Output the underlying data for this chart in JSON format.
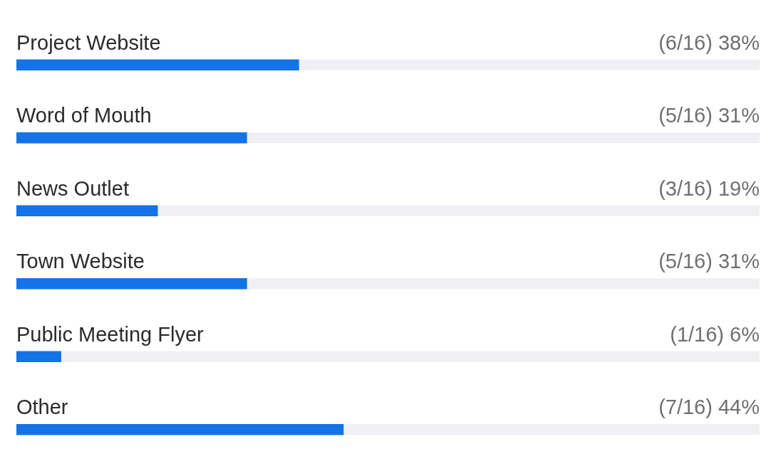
{
  "chart_data": {
    "type": "bar",
    "orientation": "horizontal",
    "categories": [
      "Project Website",
      "Word of Mouth",
      "News Outlet",
      "Town Website",
      "Public Meeting Flyer",
      "Other"
    ],
    "values": [
      38,
      31,
      19,
      31,
      6,
      44
    ],
    "value_labels": [
      "(6/16) 38%",
      "(5/16) 31%",
      "(3/16) 19%",
      "(5/16) 31%",
      "(1/16) 6%",
      "(7/16) 44%"
    ],
    "color": "#1473e6",
    "xlim": [
      0,
      100
    ],
    "tick_labels": false,
    "grid": false,
    "legend": false
  }
}
